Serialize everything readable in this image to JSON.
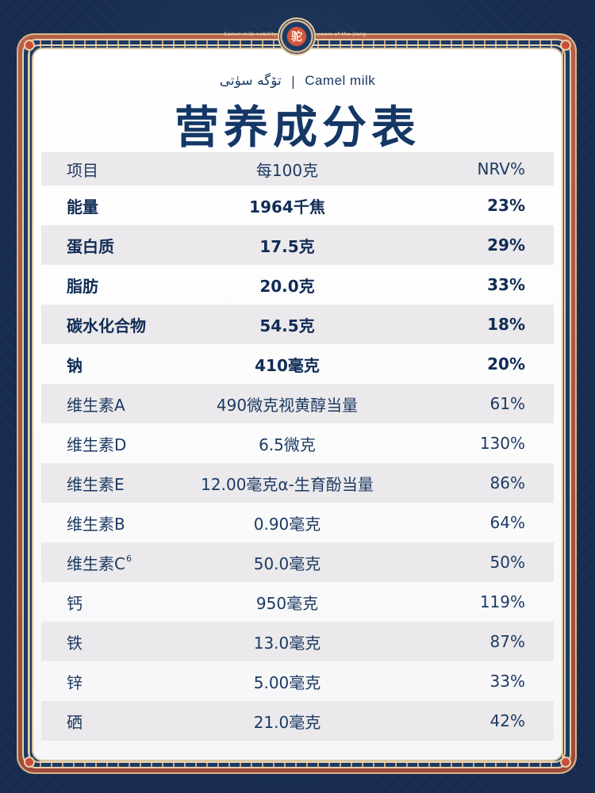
{
  "header": {
    "top_small_left": "Camel milk nobility",
    "top_small_right": "years of the jiang",
    "emblem_char": "驼",
    "subtitle_uyghur": "تۆگە سۈتى",
    "subtitle_sep": "|",
    "subtitle_en": "Camel milk",
    "title": "营养成分表"
  },
  "table": {
    "header": {
      "item": "项目",
      "per": "每100克",
      "nrv": "NRV%"
    },
    "rows": [
      {
        "item": "能量",
        "sup": "",
        "per": "1964千焦",
        "nrv": "23%",
        "bold": true,
        "shade": false
      },
      {
        "item": "蛋白质",
        "sup": "",
        "per": "17.5克",
        "nrv": "29%",
        "bold": true,
        "shade": true
      },
      {
        "item": "脂肪",
        "sup": "",
        "per": "20.0克",
        "nrv": "33%",
        "bold": true,
        "shade": false
      },
      {
        "item": "碳水化合物",
        "sup": "",
        "per": "54.5克",
        "nrv": "18%",
        "bold": true,
        "shade": true
      },
      {
        "item": "钠",
        "sup": "",
        "per": "410毫克",
        "nrv": "20%",
        "bold": true,
        "shade": false
      },
      {
        "item": "维生素A",
        "sup": "",
        "per": "490微克视黄醇当量",
        "nrv": "61%",
        "bold": false,
        "shade": true
      },
      {
        "item": "维生素D",
        "sup": "",
        "per": "6.5微克",
        "nrv": "130%",
        "bold": false,
        "shade": false
      },
      {
        "item": "维生素E",
        "sup": "",
        "per": "12.00毫克α-生育酚当量",
        "nrv": "86%",
        "bold": false,
        "shade": true
      },
      {
        "item": "维生素B",
        "sup": "",
        "per": "0.90毫克",
        "nrv": "64%",
        "bold": false,
        "shade": false
      },
      {
        "item": "维生素C",
        "sup": "6",
        "per": "50.0毫克",
        "nrv": "50%",
        "bold": false,
        "shade": true
      },
      {
        "item": "钙",
        "sup": "",
        "per": "950毫克",
        "nrv": "119%",
        "bold": false,
        "shade": false
      },
      {
        "item": "铁",
        "sup": "",
        "per": "13.0毫克",
        "nrv": "87%",
        "bold": false,
        "shade": true
      },
      {
        "item": "锌",
        "sup": "",
        "per": "5.00毫克",
        "nrv": "33%",
        "bold": false,
        "shade": false
      },
      {
        "item": "硒",
        "sup": "",
        "per": "21.0毫克",
        "nrv": "42%",
        "bold": false,
        "shade": true
      }
    ]
  },
  "colors": {
    "background": "#172c4f",
    "title": "#143765",
    "row_shade": "#ebe9eb",
    "frame_red": "#b5614a",
    "frame_gold": "#d9b48c"
  }
}
